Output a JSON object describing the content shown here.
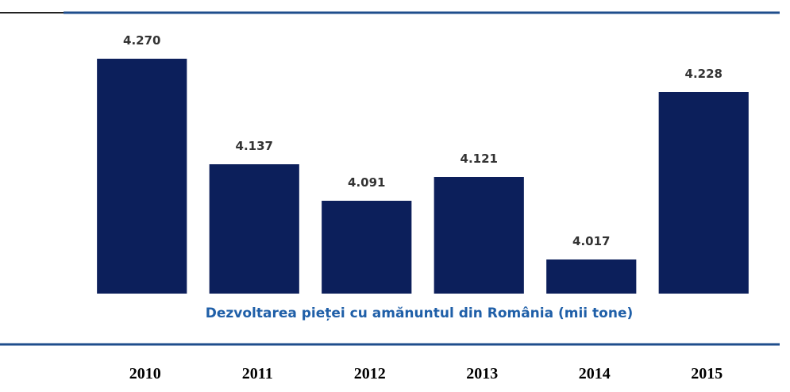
{
  "chart_data": {
    "type": "bar",
    "title": "Dezvoltarea pieței cu amănuntul din România (mii tone)",
    "categories": [
      "2010",
      "2011",
      "2012",
      "2013",
      "2014",
      "2015"
    ],
    "values": [
      4270,
      4137,
      4091,
      4121,
      4017,
      4228
    ],
    "value_labels": [
      "4.270",
      "4.137",
      "4.091",
      "4.121",
      "4.017",
      "4.228"
    ],
    "color": "#0c1f5b",
    "ylim": [
      3974,
      4299
    ]
  }
}
